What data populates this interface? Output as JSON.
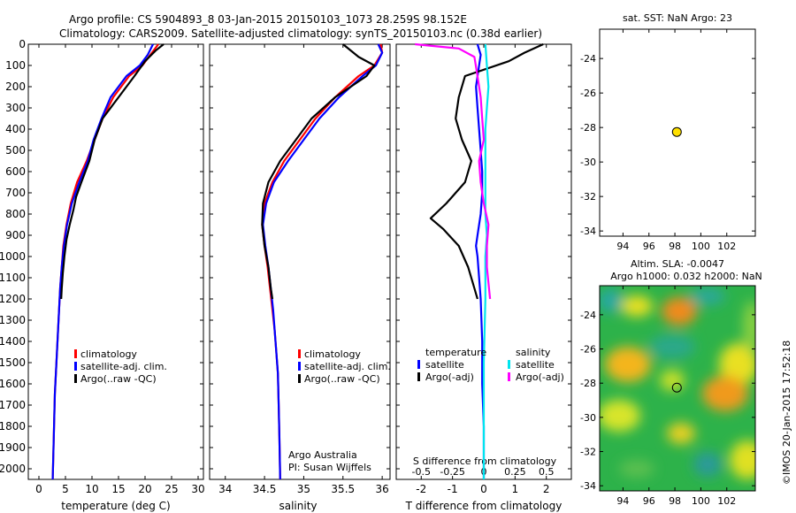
{
  "header": {
    "title_line1": "Argo profile: CS 5904893_8 03-Jan-2015 20150103_1073 28.259S 98.152E",
    "title_line2": "Climatology: CARS2009. Satellite-adjusted climatology: synTS_20150103.nc (0.38d earlier)"
  },
  "colors": {
    "climatology": "#ff0000",
    "satellite": "#0000ff",
    "argo": "#000000",
    "salinity_satellite": "#00e5ee",
    "salinity_argo": "#ff00ff",
    "argo_marker": "#ffe000"
  },
  "watermark": "©IMOS 20-Jan-2015 17:52:18",
  "chart_data": [
    {
      "type": "line",
      "xlabel": "temperature (deg C)",
      "ylim": [
        2050,
        0
      ],
      "xlim": [
        -2,
        31
      ],
      "xticks": [
        "0",
        "5",
        "10",
        "15",
        "20",
        "25",
        "30"
      ],
      "yticks": [
        "0",
        "100",
        "200",
        "300",
        "400",
        "500",
        "600",
        "700",
        "800",
        "900",
        "1000",
        "1100",
        "1200",
        "1300",
        "1400",
        "1500",
        "1600",
        "1700",
        "1800",
        "1900",
        "2000"
      ],
      "legend": [
        "climatology",
        "satellite-adj. clim.",
        "Argo(..raw -QC)"
      ],
      "series": [
        {
          "name": "climatology",
          "x": [
            22.5,
            21,
            19.5,
            17,
            14,
            12,
            10.5,
            9,
            7.2,
            6,
            5.2,
            4.6,
            4.3,
            4.0,
            3.8,
            3.6,
            3.4,
            3.2,
            3.0,
            2.9,
            2.8,
            2.7,
            2.6
          ],
          "y": [
            0,
            50,
            100,
            150,
            250,
            350,
            450,
            550,
            650,
            750,
            850,
            950,
            1050,
            1150,
            1250,
            1350,
            1450,
            1550,
            1650,
            1750,
            1850,
            1950,
            2050
          ]
        },
        {
          "name": "satellite-adj. clim.",
          "x": [
            21.5,
            20.5,
            19,
            16.5,
            13.5,
            11.8,
            10.3,
            9.2,
            7.6,
            6.2,
            5.3,
            4.7,
            4.3,
            4.0,
            3.8,
            3.6,
            3.4,
            3.2,
            3.0,
            2.9,
            2.8,
            2.7,
            2.6
          ],
          "y": [
            0,
            50,
            100,
            150,
            250,
            350,
            450,
            550,
            650,
            750,
            850,
            950,
            1050,
            1150,
            1250,
            1350,
            1450,
            1550,
            1650,
            1750,
            1850,
            1950,
            2050
          ]
        },
        {
          "name": "Argo(..raw -QC)",
          "x": [
            23.5,
            22,
            20,
            18,
            15,
            12,
            10.5,
            9.5,
            8,
            7,
            6.5,
            5.8,
            5.2,
            4.8,
            4.5,
            4.3,
            4.2
          ],
          "y": [
            0,
            30,
            80,
            150,
            250,
            350,
            450,
            550,
            650,
            720,
            780,
            850,
            920,
            1000,
            1080,
            1150,
            1200
          ]
        }
      ]
    },
    {
      "type": "line",
      "xlabel": "salinity",
      "ylim": [
        2050,
        0
      ],
      "xlim": [
        33.8,
        36.1
      ],
      "xticks": [
        "34",
        "34.5",
        "35",
        "35.5",
        "36"
      ],
      "legend": [
        "climatology",
        "satellite-adj. clim.",
        "Argo(..raw -QC)"
      ],
      "annotation_lines": [
        "Argo Australia",
        "PI: Susan Wijffels"
      ],
      "series": [
        {
          "name": "climatology",
          "x": [
            35.98,
            36.0,
            35.9,
            35.7,
            35.4,
            35.15,
            34.95,
            34.75,
            34.6,
            34.5,
            34.47,
            34.5,
            34.54,
            34.57,
            34.6,
            34.63,
            34.65,
            34.67,
            34.68,
            34.69,
            34.7
          ],
          "y": [
            0,
            40,
            100,
            150,
            250,
            350,
            450,
            550,
            650,
            750,
            850,
            950,
            1050,
            1150,
            1250,
            1350,
            1450,
            1550,
            1700,
            1850,
            2050
          ]
        },
        {
          "name": "satellite-adj. clim.",
          "x": [
            35.95,
            36.0,
            35.92,
            35.75,
            35.45,
            35.2,
            35.0,
            34.8,
            34.62,
            34.52,
            34.48,
            34.51,
            34.55,
            34.58,
            34.61,
            34.63,
            34.65,
            34.67,
            34.68,
            34.69,
            34.7
          ],
          "y": [
            0,
            40,
            100,
            150,
            250,
            350,
            450,
            550,
            650,
            750,
            850,
            950,
            1050,
            1150,
            1250,
            1350,
            1450,
            1550,
            1700,
            1850,
            2050
          ]
        },
        {
          "name": "Argo(..raw -QC)",
          "x": [
            35.5,
            35.7,
            35.9,
            35.8,
            35.4,
            35.1,
            34.9,
            34.7,
            34.55,
            34.48,
            34.47,
            34.5,
            34.55,
            34.58,
            34.6
          ],
          "y": [
            0,
            60,
            100,
            150,
            250,
            350,
            450,
            550,
            650,
            750,
            850,
            950,
            1050,
            1150,
            1200
          ]
        }
      ]
    },
    {
      "type": "line",
      "xlabel": "T difference from climatology",
      "x2label": "S difference from climatology",
      "ylim": [
        2050,
        0
      ],
      "xlim": [
        -2.8,
        2.8
      ],
      "xticks": [
        "-2",
        "-1",
        "0",
        "1",
        "2"
      ],
      "x2ticks": [
        "-0.5",
        "-0.25",
        "0",
        "0.25",
        "0.5"
      ],
      "legend_headers": [
        "temperature",
        "salinity"
      ],
      "legend": [
        "satellite",
        "Argo(-adj)",
        "satellite",
        "Argo(-adj)"
      ],
      "series": [
        {
          "name": "satellite",
          "x": [
            -0.2,
            -0.1,
            -0.15,
            -0.25,
            -0.2,
            -0.15,
            -0.1,
            -0.05,
            -0.05,
            -0.1,
            -0.2,
            -0.25,
            -0.2,
            -0.15,
            -0.1,
            -0.05,
            -0.05,
            0,
            0,
            0
          ],
          "y": [
            0,
            50,
            100,
            200,
            300,
            400,
            500,
            600,
            700,
            800,
            900,
            950,
            1000,
            1100,
            1200,
            1400,
            1600,
            1800,
            1950,
            2050
          ]
        },
        {
          "name": "Argo(-adj)",
          "x": [
            1.9,
            1.3,
            0.8,
            -0.6,
            -0.8,
            -0.9,
            -0.7,
            -0.4,
            -0.6,
            -1.2,
            -1.7,
            -1.3,
            -0.8,
            -0.5,
            -0.3,
            -0.2
          ],
          "y": [
            0,
            40,
            80,
            150,
            250,
            350,
            450,
            550,
            650,
            750,
            820,
            870,
            950,
            1050,
            1150,
            1200
          ]
        },
        {
          "name": "satellite",
          "x": [
            0.05,
            0.1,
            0.15,
            0.1,
            0.05,
            0.05,
            0.05,
            0.05,
            0.05,
            0.1,
            0.05,
            0.05,
            0.0,
            0.0,
            0.0
          ],
          "y": [
            0,
            100,
            200,
            300,
            400,
            500,
            600,
            700,
            800,
            900,
            1000,
            1200,
            1500,
            1800,
            2050
          ]
        },
        {
          "name": "Argo(-adj)",
          "x": [
            -2.2,
            -0.8,
            -0.3,
            -0.2,
            -0.1,
            -0.05,
            0,
            -0.15,
            -0.1,
            0,
            0.15,
            0.1,
            0.1,
            0.2
          ],
          "y": [
            0,
            20,
            60,
            150,
            250,
            350,
            450,
            550,
            650,
            750,
            850,
            950,
            1050,
            1200
          ]
        }
      ]
    },
    {
      "type": "scatter",
      "title": "sat. SST: NaN Argo: 23",
      "xlim": [
        92.2,
        104.2
      ],
      "ylim": [
        -34.3,
        -22.3
      ],
      "xticks": [
        "94",
        "96",
        "98",
        "100",
        "102"
      ],
      "yticks": [
        "-24",
        "-26",
        "-28",
        "-30",
        "-32",
        "-34"
      ],
      "points": [
        {
          "x": 98.152,
          "y": -28.259
        }
      ]
    },
    {
      "type": "heatmap",
      "title_line1": "Altim. SLA: -0.0047",
      "title_line2": "Argo h1000: 0.032 h2000: NaN",
      "xlim": [
        92.2,
        104.2
      ],
      "ylim": [
        -34.3,
        -22.3
      ],
      "xticks": [
        "94",
        "96",
        "98",
        "100",
        "102"
      ],
      "yticks": [
        "-24",
        "-26",
        "-28",
        "-30",
        "-32",
        "-34"
      ],
      "argo_point": {
        "x": 98.152,
        "y": -28.259
      }
    }
  ]
}
